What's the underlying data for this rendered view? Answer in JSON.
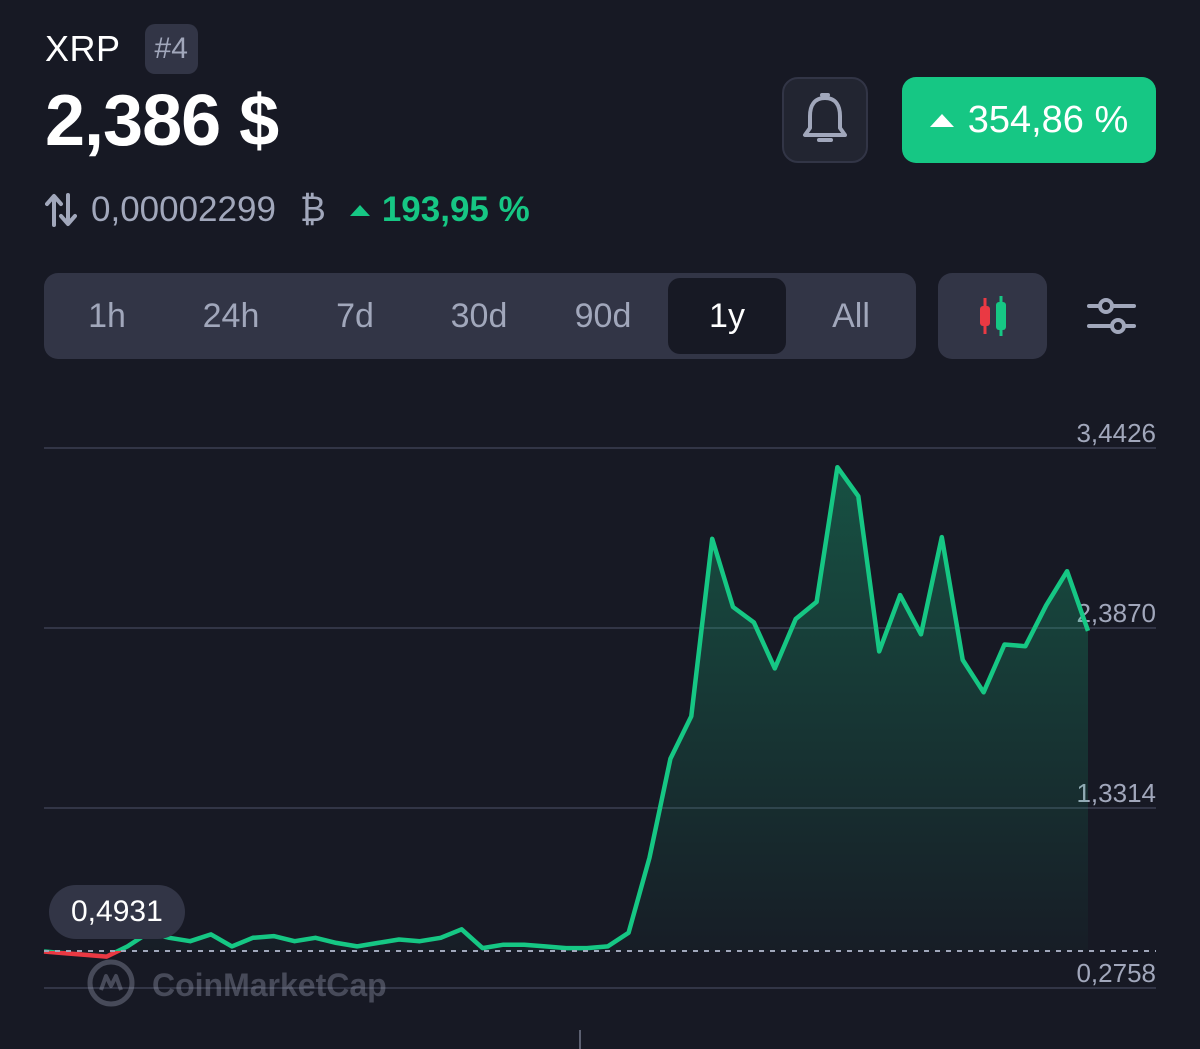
{
  "coin": {
    "symbol": "XRP",
    "rank": "#4"
  },
  "price": "2,386 $",
  "change_badge": "354,86 %",
  "btc": {
    "value": "0,00002299",
    "unit": "₿",
    "change": "193,95 %"
  },
  "range_tabs": [
    "1h",
    "24h",
    "7d",
    "30d",
    "90d",
    "1y",
    "All"
  ],
  "active_tab": "1y",
  "watermark": "CoinMarketCap",
  "tooltip_value": "0,4931",
  "colors": {
    "up": "#16c784",
    "down": "#ea3943",
    "background": "#171924",
    "panel": "#323546",
    "muted": "#a1a7bb"
  },
  "icons": {
    "alert": "bell-icon",
    "swap": "swap-arrows-icon",
    "chart_type": "candlestick-icon",
    "settings": "sliders-icon"
  },
  "chart_data": {
    "type": "line",
    "period": "1y",
    "y_ticks": [
      3.4426,
      2.387,
      1.3314,
      0.2758
    ],
    "y_tick_labels": [
      "3,4426",
      "2,3870",
      "1,3314",
      "0,2758"
    ],
    "ylim": [
      0.2758,
      3.4426
    ],
    "baseline": 0.4931,
    "baseline_label": "0,4931",
    "xlabel": "",
    "ylabel": "",
    "x": [
      0,
      2,
      4,
      6,
      8,
      10,
      12,
      14,
      16,
      18,
      20,
      22,
      24,
      26,
      28,
      30,
      32,
      34,
      36,
      38,
      40,
      42,
      44,
      46,
      48,
      50,
      52,
      54,
      56,
      58,
      60,
      62,
      64,
      66,
      68,
      70,
      72,
      74,
      76,
      78,
      80,
      82,
      84,
      86,
      88,
      90,
      92,
      94,
      96,
      98,
      100
    ],
    "values": [
      0.49,
      0.48,
      0.47,
      0.46,
      0.52,
      0.6,
      0.57,
      0.55,
      0.59,
      0.52,
      0.57,
      0.58,
      0.55,
      0.57,
      0.54,
      0.52,
      0.54,
      0.56,
      0.55,
      0.57,
      0.62,
      0.51,
      0.53,
      0.53,
      0.52,
      0.51,
      0.51,
      0.52,
      0.6,
      1.04,
      1.62,
      1.87,
      2.91,
      2.51,
      2.42,
      2.15,
      2.44,
      2.54,
      3.33,
      3.16,
      2.25,
      2.58,
      2.35,
      2.92,
      2.2,
      2.01,
      2.29,
      2.28,
      2.52,
      2.72,
      2.37
    ]
  }
}
